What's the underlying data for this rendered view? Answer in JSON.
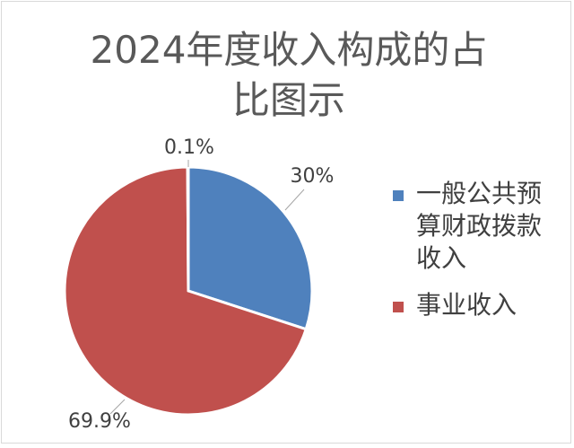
{
  "chart_data": {
    "type": "pie",
    "title": "2024年度收入构成的占比图示",
    "title_lines": [
      "2024年度收入构成的占",
      "比图示"
    ],
    "categories": [
      "一般公共预算财政拨款收入",
      "事业收入",
      ""
    ],
    "values": [
      30,
      69.9,
      0.1
    ],
    "data_labels": [
      "30%",
      "69.9%",
      "0.1%"
    ],
    "colors": [
      "#4f81bd",
      "#c0504d",
      "#9bbb59"
    ],
    "legend": {
      "position": "right",
      "entries": [
        "一般公共预算财政拨款收入",
        "事业收入"
      ]
    }
  }
}
